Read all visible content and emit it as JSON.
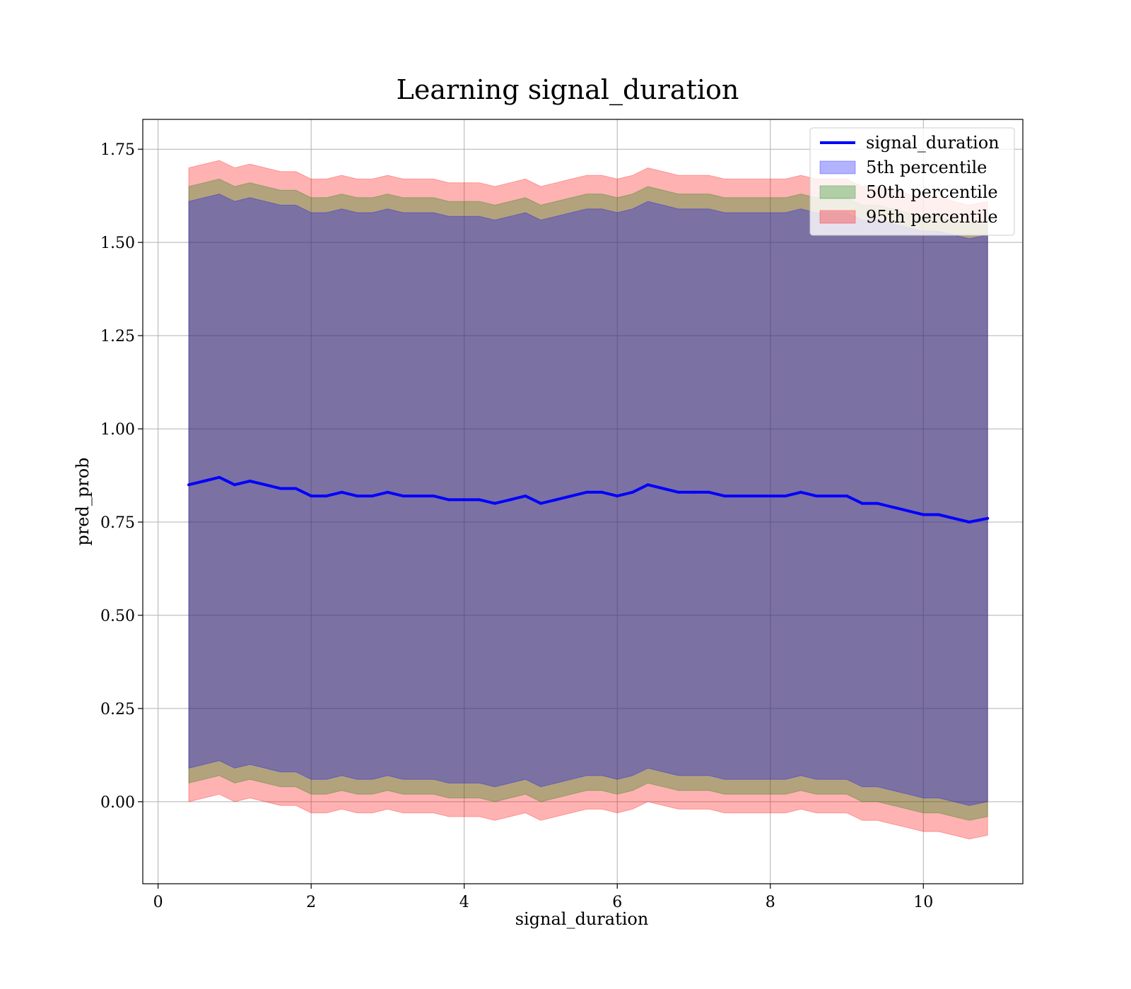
{
  "chart_data": {
    "type": "area",
    "title": "Learning signal_duration",
    "xlabel": "signal_duration",
    "ylabel": "pred_prob",
    "xlim": [
      -0.2,
      11.3
    ],
    "ylim": [
      -0.22,
      1.83
    ],
    "xticks": [
      0,
      2,
      4,
      6,
      8,
      10
    ],
    "xtick_labels": [
      "0",
      "2",
      "4",
      "6",
      "8",
      "10"
    ],
    "yticks": [
      0.0,
      0.25,
      0.5,
      0.75,
      1.0,
      1.25,
      1.5,
      1.75
    ],
    "ytick_labels": [
      "0.00",
      "0.25",
      "0.50",
      "0.75",
      "1.00",
      "1.25",
      "1.50",
      "1.75"
    ],
    "grid": true,
    "legend_position": "top-right",
    "x": [
      0.4,
      0.6,
      0.8,
      1.0,
      1.2,
      1.4,
      1.6,
      1.8,
      2.0,
      2.2,
      2.4,
      2.6,
      2.8,
      3.0,
      3.2,
      3.4,
      3.6,
      3.8,
      4.0,
      4.2,
      4.4,
      4.6,
      4.8,
      5.0,
      5.2,
      5.4,
      5.6,
      5.8,
      6.0,
      6.2,
      6.4,
      6.6,
      6.8,
      7.0,
      7.2,
      7.4,
      7.6,
      7.8,
      8.0,
      8.2,
      8.4,
      8.6,
      8.8,
      9.0,
      9.2,
      9.4,
      9.6,
      9.8,
      10.0,
      10.2,
      10.4,
      10.6,
      10.84
    ],
    "series": [
      {
        "name": "signal_duration",
        "kind": "line",
        "color": "#0000ff",
        "values": [
          0.85,
          0.86,
          0.87,
          0.85,
          0.86,
          0.85,
          0.84,
          0.84,
          0.82,
          0.82,
          0.83,
          0.82,
          0.82,
          0.83,
          0.82,
          0.82,
          0.82,
          0.81,
          0.81,
          0.81,
          0.8,
          0.81,
          0.82,
          0.8,
          0.81,
          0.82,
          0.83,
          0.83,
          0.82,
          0.83,
          0.85,
          0.84,
          0.83,
          0.83,
          0.83,
          0.82,
          0.82,
          0.82,
          0.82,
          0.82,
          0.83,
          0.82,
          0.82,
          0.82,
          0.8,
          0.8,
          0.79,
          0.78,
          0.77,
          0.77,
          0.76,
          0.75,
          0.76
        ]
      },
      {
        "name": "5th percentile",
        "kind": "band",
        "color": "#0000ff",
        "half_width": 0.76
      },
      {
        "name": "50th percentile",
        "kind": "band",
        "color": "#008000",
        "half_width": 0.8
      },
      {
        "name": "95th percentile",
        "kind": "band",
        "color": "#ff0000",
        "half_width": 0.85
      }
    ]
  }
}
